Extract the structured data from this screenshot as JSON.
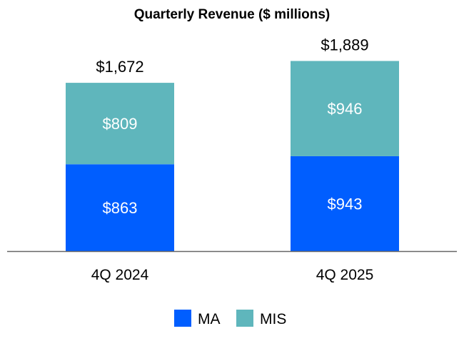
{
  "chart_data": {
    "type": "bar",
    "stacked": true,
    "title": "Quarterly Revenue ($ millions)",
    "categories": [
      "4Q 2024",
      "4Q 2025"
    ],
    "series": [
      {
        "name": "MA",
        "values": [
          863,
          943
        ],
        "labels": [
          "$863",
          "$943"
        ],
        "color": "#005EFF"
      },
      {
        "name": "MIS",
        "values": [
          809,
          946
        ],
        "labels": [
          "$809",
          "$946"
        ],
        "color": "#5FB6BC"
      }
    ],
    "totals": [
      1672,
      1889
    ],
    "total_labels": [
      "$1,672",
      "$1,889"
    ],
    "xlabel": "",
    "ylabel": "",
    "ylim": [
      0,
      2000
    ],
    "grid": false,
    "legend": "bottom"
  }
}
